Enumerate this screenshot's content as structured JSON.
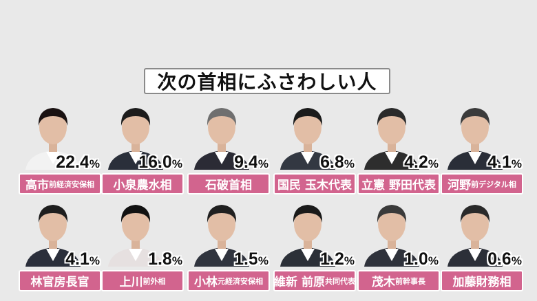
{
  "title": "次の首相にふさわしい人",
  "colors": {
    "label_bg": "#d2648e",
    "background": "#e9e9e9"
  },
  "chart_data": {
    "type": "table",
    "unit": "%",
    "entries": [
      {
        "name": "高市",
        "role": "前経済安保相",
        "value": 22.4,
        "value_text": "22.4",
        "icon": "portrait-icon"
      },
      {
        "name": "小泉",
        "role": "農水相",
        "value": 16.0,
        "value_text": "16.0",
        "icon": "portrait-icon"
      },
      {
        "name": "石破",
        "role": "首相",
        "value": 9.4,
        "value_text": "9.4",
        "icon": "portrait-icon"
      },
      {
        "name": "国民 玉木",
        "role": "代表",
        "value": 6.8,
        "value_text": "6.8",
        "icon": "portrait-icon"
      },
      {
        "name": "立憲 野田",
        "role": "代表",
        "value": 4.2,
        "value_text": "4.2",
        "icon": "portrait-icon"
      },
      {
        "name": "河野",
        "role": "前デジタル相",
        "value": 4.1,
        "value_text": "4.1",
        "icon": "portrait-icon"
      },
      {
        "name": "林",
        "role": "官房長官",
        "value": 4.1,
        "value_text": "4.1",
        "icon": "portrait-icon"
      },
      {
        "name": "上川",
        "role": "前外相",
        "value": 1.8,
        "value_text": "1.8",
        "icon": "portrait-icon"
      },
      {
        "name": "小林",
        "role": "元経済安保相",
        "value": 1.5,
        "value_text": "1.5",
        "icon": "portrait-icon"
      },
      {
        "name": "維新 前原",
        "role": "共同代表",
        "value": 1.2,
        "value_text": "1.2",
        "icon": "portrait-icon"
      },
      {
        "name": "茂木",
        "role": "前幹事長",
        "value": 1.0,
        "value_text": "1.0",
        "icon": "portrait-icon"
      },
      {
        "name": "加藤",
        "role": "財務相",
        "value": 0.6,
        "value_text": "0.6",
        "icon": "portrait-icon"
      }
    ]
  }
}
